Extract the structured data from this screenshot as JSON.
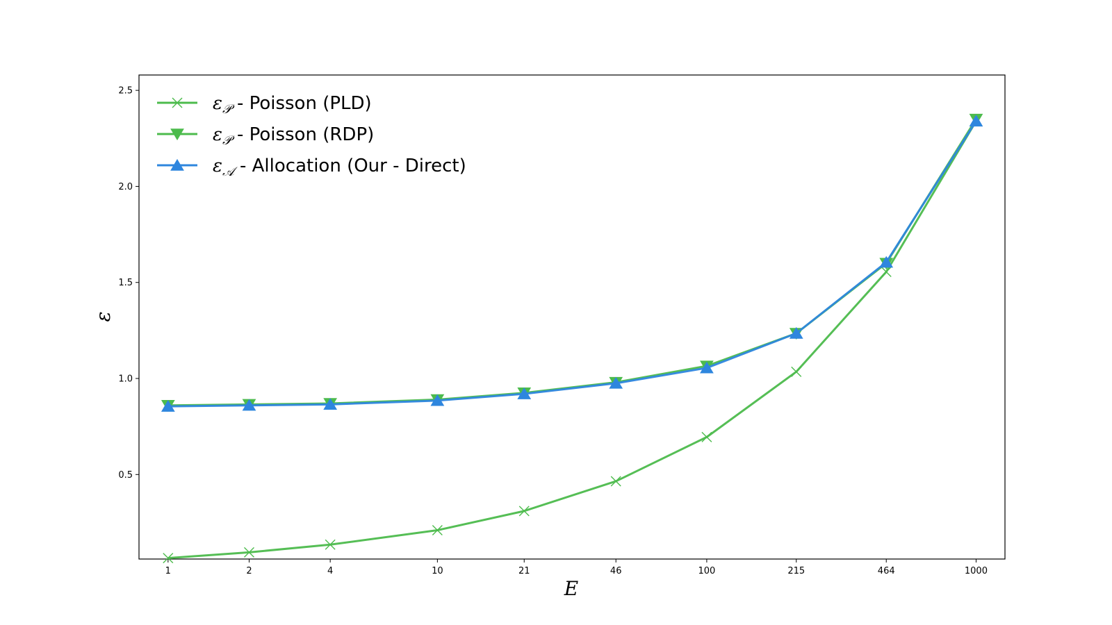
{
  "chart_data": {
    "type": "line",
    "xlabel": "E",
    "ylabel": "ε",
    "x_scale": "log",
    "x": [
      1,
      2,
      4,
      10,
      21,
      46,
      100,
      215,
      464,
      1000
    ],
    "x_tick_labels": [
      "1",
      "2",
      "4",
      "10",
      "21",
      "46",
      "100",
      "215",
      "464",
      "1000"
    ],
    "y_ticks": [
      0.5,
      1.0,
      1.5,
      2.0,
      2.5
    ],
    "y_tick_labels": [
      "0.5",
      "1.0",
      "1.5",
      "2.0",
      "2.5"
    ],
    "ylim": [
      0.06,
      2.58
    ],
    "xlim": [
      0.78,
      1280
    ],
    "grid": false,
    "legend_position": "top-left",
    "series": [
      {
        "name": "- Poisson (PLD)",
        "legend_symbol": "ε",
        "legend_subscript": "𝒫",
        "color": "#4CBB4C",
        "marker": "x",
        "values": [
          0.065,
          0.095,
          0.135,
          0.21,
          0.31,
          0.465,
          0.695,
          1.035,
          1.555,
          2.34
        ]
      },
      {
        "name": "- Poisson (RDP)",
        "legend_symbol": "ε",
        "legend_subscript": "𝒫",
        "color": "#4CBB4C",
        "marker": "triangle-down",
        "values": [
          0.86,
          0.865,
          0.87,
          0.89,
          0.925,
          0.98,
          1.065,
          1.235,
          1.6,
          2.35
        ]
      },
      {
        "name": "- Allocation (Our - Direct)",
        "legend_symbol": "ε",
        "legend_subscript": "𝒜",
        "color": "#2E86DE",
        "marker": "triangle-up",
        "values": [
          0.855,
          0.86,
          0.865,
          0.885,
          0.92,
          0.975,
          1.055,
          1.235,
          1.605,
          2.34
        ]
      }
    ]
  }
}
